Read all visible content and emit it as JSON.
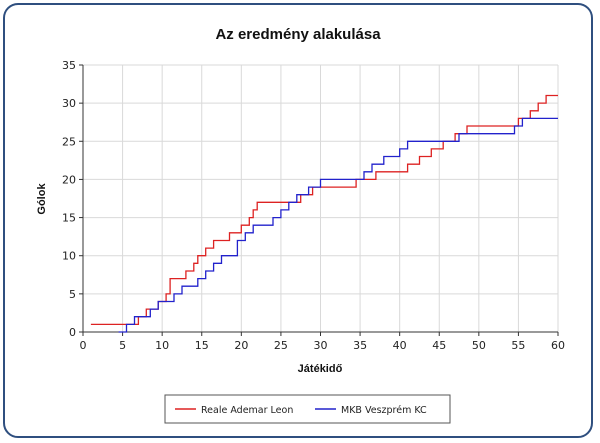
{
  "chart_data": {
    "type": "line",
    "step": true,
    "title": "Az eredmény alakulása",
    "xlabel": "Játékidő",
    "ylabel": "Gólok",
    "xlim": [
      0,
      60
    ],
    "ylim": [
      0,
      35
    ],
    "xticks": [
      "0",
      "5",
      "10",
      "15",
      "20",
      "25",
      "30",
      "35",
      "40",
      "45",
      "50",
      "55",
      "60"
    ],
    "yticks": [
      "0",
      "5",
      "10",
      "15",
      "20",
      "25",
      "30",
      "35"
    ],
    "grid": true,
    "legend_position": "bottom",
    "series": [
      {
        "name": "Reale Ademar Leon",
        "color": "#dd2222",
        "x": [
          1,
          4.5,
          7,
          8,
          9.5,
          10.5,
          11,
          13,
          14,
          14.5,
          15.5,
          16.5,
          18.5,
          20,
          21,
          21.5,
          22,
          23,
          24,
          27.5,
          29,
          34.5,
          37,
          41,
          42.5,
          44,
          45.5,
          47,
          48.5,
          49,
          50,
          55,
          56.5,
          57.5,
          58.5,
          59.5,
          60
        ],
        "y": [
          1,
          1,
          2,
          3,
          4,
          5,
          7,
          8,
          9,
          10,
          11,
          12,
          13,
          14,
          15,
          16,
          17,
          17,
          17,
          18,
          19,
          20,
          21,
          22,
          23,
          24,
          25,
          26,
          27,
          27,
          27,
          28,
          29,
          30,
          31,
          31,
          31
        ]
      },
      {
        "name": "MKB Veszprém KC",
        "color": "#2222cc",
        "x": [
          4.5,
          5.5,
          6.5,
          8.5,
          9.5,
          11.5,
          12.5,
          14.5,
          15.5,
          16.5,
          17.5,
          19.5,
          20.5,
          21.5,
          24,
          25,
          26,
          27,
          28.5,
          30,
          35.5,
          36.5,
          38,
          40,
          41,
          47.5,
          51,
          54.5,
          55.5,
          56.5,
          60
        ],
        "y": [
          0,
          1,
          2,
          3,
          4,
          5,
          6,
          7,
          8,
          9,
          10,
          12,
          13,
          14,
          15,
          16,
          17,
          18,
          19,
          20,
          21,
          22,
          23,
          24,
          25,
          26,
          26,
          27,
          28,
          28,
          28
        ]
      }
    ]
  }
}
